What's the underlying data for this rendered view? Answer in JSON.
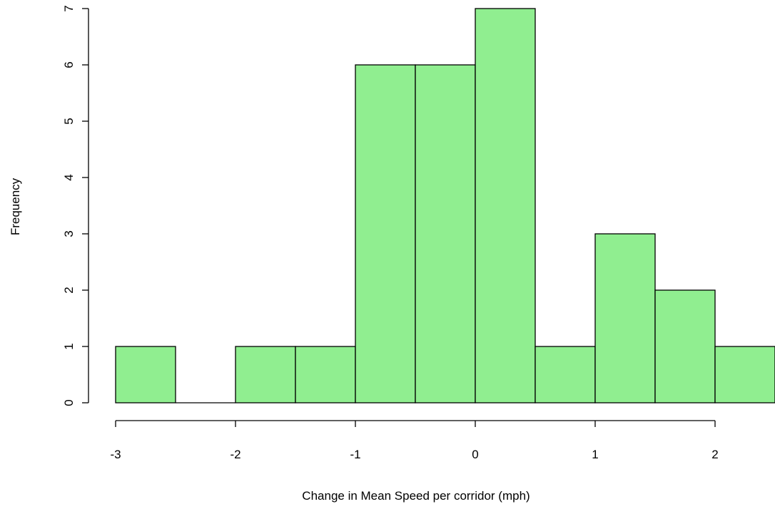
{
  "chart_data": {
    "type": "bar",
    "title": "",
    "xlabel": "Change in Mean Speed per corridor (mph)",
    "ylabel": "Frequency",
    "bins": [
      {
        "start": -3.0,
        "end": -2.5,
        "count": 1
      },
      {
        "start": -2.5,
        "end": -2.0,
        "count": 0
      },
      {
        "start": -2.0,
        "end": -1.5,
        "count": 1
      },
      {
        "start": -1.5,
        "end": -1.0,
        "count": 1
      },
      {
        "start": -1.0,
        "end": -0.5,
        "count": 6
      },
      {
        "start": -0.5,
        "end": 0.0,
        "count": 6
      },
      {
        "start": 0.0,
        "end": 0.5,
        "count": 7
      },
      {
        "start": 0.5,
        "end": 1.0,
        "count": 1
      },
      {
        "start": 1.0,
        "end": 1.5,
        "count": 3
      },
      {
        "start": 1.5,
        "end": 2.0,
        "count": 2
      },
      {
        "start": 2.0,
        "end": 2.5,
        "count": 1
      }
    ],
    "xlim": [
      -3,
      2.5
    ],
    "ylim": [
      0,
      7
    ],
    "x_ticks": [
      -3,
      -2,
      -1,
      0,
      1,
      2
    ],
    "x_tick_labels": [
      "-3",
      "-2",
      "-1",
      "0",
      "1",
      "2"
    ],
    "y_ticks": [
      0,
      1,
      2,
      3,
      4,
      5,
      6,
      7
    ],
    "y_tick_labels": [
      "0",
      "1",
      "2",
      "3",
      "4",
      "5",
      "6",
      "7"
    ],
    "bar_color": "#90EE90",
    "edge_color": "#000000",
    "grid": false,
    "legend": "none"
  }
}
